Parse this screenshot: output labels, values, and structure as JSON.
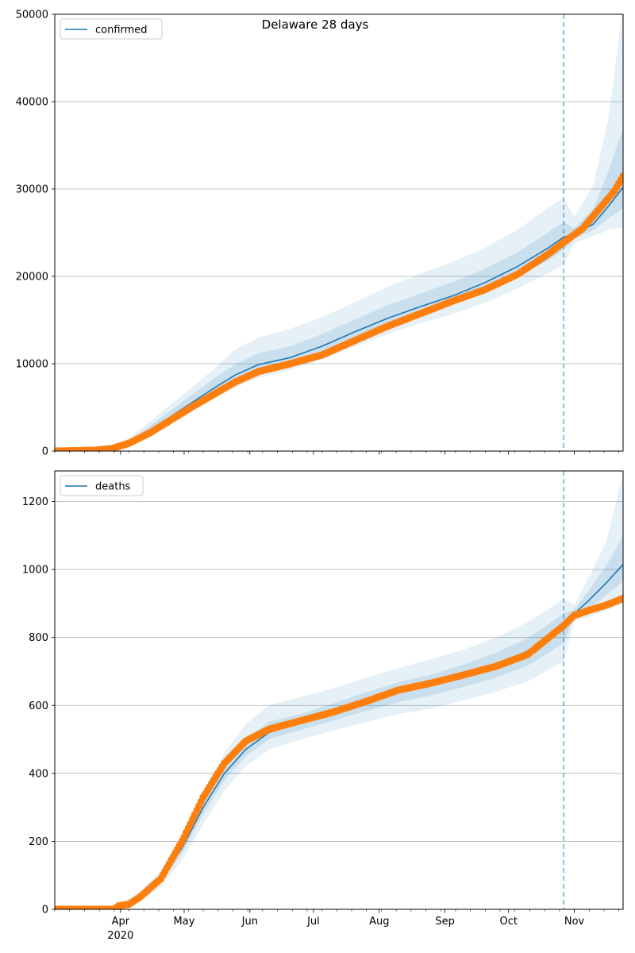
{
  "figure": {
    "suptitle": "Delaware 28 days"
  },
  "colors": {
    "model": "#1f77b4",
    "observed": "#ff7f0e",
    "band": "#1f77b4",
    "grid": "#b0b0b0",
    "split": "#1f77b4"
  },
  "x_axis": {
    "start": "2020-03-01",
    "end": "2020-11-24",
    "split_date": "2020-10-27",
    "month_ticks": [
      {
        "date": "2020-04-01",
        "label": "Apr",
        "sublabel": "2020"
      },
      {
        "date": "2020-05-01",
        "label": "May",
        "sublabel": ""
      },
      {
        "date": "2020-06-01",
        "label": "Jun",
        "sublabel": ""
      },
      {
        "date": "2020-07-01",
        "label": "Jul",
        "sublabel": ""
      },
      {
        "date": "2020-08-01",
        "label": "Aug",
        "sublabel": ""
      },
      {
        "date": "2020-09-01",
        "label": "Sep",
        "sublabel": ""
      },
      {
        "date": "2020-10-01",
        "label": "Oct",
        "sublabel": ""
      },
      {
        "date": "2020-11-01",
        "label": "Nov",
        "sublabel": ""
      }
    ]
  },
  "chart_data": [
    {
      "type": "line",
      "legend": "confirmed",
      "legend_position": "top-left",
      "grid": true,
      "ylim": [
        0,
        50000
      ],
      "yticks": [
        0,
        10000,
        20000,
        30000,
        40000,
        50000
      ],
      "model": {
        "x": [
          "2020-03-01",
          "2020-03-28",
          "2020-04-05",
          "2020-04-15",
          "2020-04-25",
          "2020-05-05",
          "2020-05-15",
          "2020-05-25",
          "2020-06-05",
          "2020-06-20",
          "2020-07-05",
          "2020-07-20",
          "2020-08-05",
          "2020-08-20",
          "2020-09-05",
          "2020-09-20",
          "2020-10-05",
          "2020-10-20",
          "2020-10-27",
          "2020-11-01",
          "2020-11-10",
          "2020-11-17",
          "2020-11-24"
        ],
        "y": [
          0,
          300,
          1000,
          2400,
          4000,
          5600,
          7200,
          8700,
          9900,
          10700,
          12000,
          13600,
          15200,
          16500,
          17800,
          19300,
          21100,
          23300,
          24500,
          24800,
          26000,
          28000,
          30200
        ],
        "band_outer": {
          "lo": [
            0,
            150,
            700,
            1800,
            3200,
            4600,
            6000,
            7300,
            8400,
            9300,
            10500,
            11900,
            13400,
            14600,
            15700,
            17000,
            18600,
            20400,
            21400,
            23800,
            24600,
            25300,
            25600
          ],
          "hi": [
            0,
            500,
            1500,
            3400,
            5400,
            7400,
            9400,
            11600,
            13000,
            14000,
            15300,
            17000,
            18800,
            20300,
            21700,
            23300,
            25300,
            27900,
            29000,
            26800,
            30500,
            38000,
            51000
          ]
        },
        "band_inner": {
          "lo": [
            0,
            220,
            850,
            2100,
            3600,
            5100,
            6600,
            8000,
            9200,
            10000,
            11300,
            12800,
            14300,
            15600,
            16800,
            18200,
            19900,
            21900,
            23000,
            24300,
            25300,
            26600,
            27800
          ],
          "hi": [
            0,
            400,
            1250,
            2900,
            4700,
            6500,
            8300,
            9900,
            11200,
            12000,
            13400,
            15000,
            16700,
            18000,
            19400,
            20900,
            22700,
            25100,
            26200,
            25500,
            27800,
            32000,
            37000
          ]
        }
      },
      "observed": {
        "x": [
          "2020-03-01",
          "2020-03-20",
          "2020-03-28",
          "2020-04-05",
          "2020-04-15",
          "2020-04-25",
          "2020-05-05",
          "2020-05-15",
          "2020-05-25",
          "2020-06-05",
          "2020-06-20",
          "2020-07-05",
          "2020-07-20",
          "2020-08-05",
          "2020-08-20",
          "2020-09-05",
          "2020-09-20",
          "2020-10-05",
          "2020-10-20",
          "2020-10-27",
          "2020-11-05",
          "2020-11-12",
          "2020-11-20",
          "2020-11-24"
        ],
        "y": [
          0,
          100,
          300,
          900,
          2100,
          3600,
          5100,
          6500,
          7900,
          9100,
          10000,
          11000,
          12600,
          14300,
          15700,
          17200,
          18500,
          20200,
          22600,
          23900,
          25500,
          27500,
          29800,
          31500
        ]
      }
    },
    {
      "type": "line",
      "legend": "deaths",
      "legend_position": "top-left",
      "grid": true,
      "ylim": [
        0,
        1290
      ],
      "yticks": [
        0,
        200,
        400,
        600,
        800,
        1000,
        1200
      ],
      "model": {
        "x": [
          "2020-03-01",
          "2020-03-26",
          "2020-04-01",
          "2020-04-10",
          "2020-04-20",
          "2020-04-30",
          "2020-05-10",
          "2020-05-20",
          "2020-05-30",
          "2020-06-10",
          "2020-06-25",
          "2020-07-10",
          "2020-07-25",
          "2020-08-10",
          "2020-08-25",
          "2020-09-10",
          "2020-09-25",
          "2020-10-10",
          "2020-10-20",
          "2020-10-27",
          "2020-11-01",
          "2020-11-08",
          "2020-11-16",
          "2020-11-24"
        ],
        "y": [
          0,
          0,
          10,
          35,
          90,
          180,
          300,
          400,
          470,
          520,
          550,
          580,
          610,
          640,
          660,
          690,
          720,
          760,
          800,
          835,
          870,
          910,
          960,
          1015
        ],
        "band_outer": {
          "lo": [
            0,
            0,
            5,
            25,
            65,
            145,
            250,
            350,
            420,
            470,
            500,
            525,
            550,
            575,
            590,
            615,
            640,
            670,
            705,
            730,
            850,
            860,
            880,
            900
          ],
          "hi": [
            0,
            0,
            18,
            50,
            115,
            220,
            350,
            460,
            545,
            600,
            625,
            650,
            680,
            710,
            735,
            765,
            800,
            845,
            885,
            915,
            895,
            980,
            1080,
            1280
          ]
        },
        "band_inner": {
          "lo": [
            0,
            0,
            8,
            30,
            80,
            165,
            280,
            380,
            450,
            500,
            528,
            555,
            582,
            610,
            628,
            655,
            682,
            717,
            755,
            785,
            860,
            885,
            925,
            965
          ],
          "hi": [
            0,
            0,
            13,
            42,
            100,
            200,
            322,
            425,
            500,
            552,
            575,
            605,
            637,
            668,
            690,
            720,
            755,
            798,
            840,
            872,
            882,
            940,
            1010,
            1100
          ]
        }
      },
      "observed": {
        "x": [
          "2020-03-01",
          "2020-03-29",
          "2020-03-31",
          "2020-04-05",
          "2020-04-10",
          "2020-04-20",
          "2020-04-30",
          "2020-05-10",
          "2020-05-20",
          "2020-05-30",
          "2020-06-10",
          "2020-06-25",
          "2020-07-10",
          "2020-07-25",
          "2020-08-10",
          "2020-08-25",
          "2020-09-10",
          "2020-09-25",
          "2020-10-10",
          "2020-10-20",
          "2020-10-27",
          "2020-11-01",
          "2020-11-08",
          "2020-11-16",
          "2020-11-24"
        ],
        "y": [
          0,
          0,
          10,
          15,
          35,
          90,
          200,
          330,
          430,
          495,
          530,
          555,
          580,
          610,
          645,
          665,
          690,
          715,
          750,
          800,
          835,
          865,
          880,
          895,
          915
        ]
      }
    }
  ]
}
